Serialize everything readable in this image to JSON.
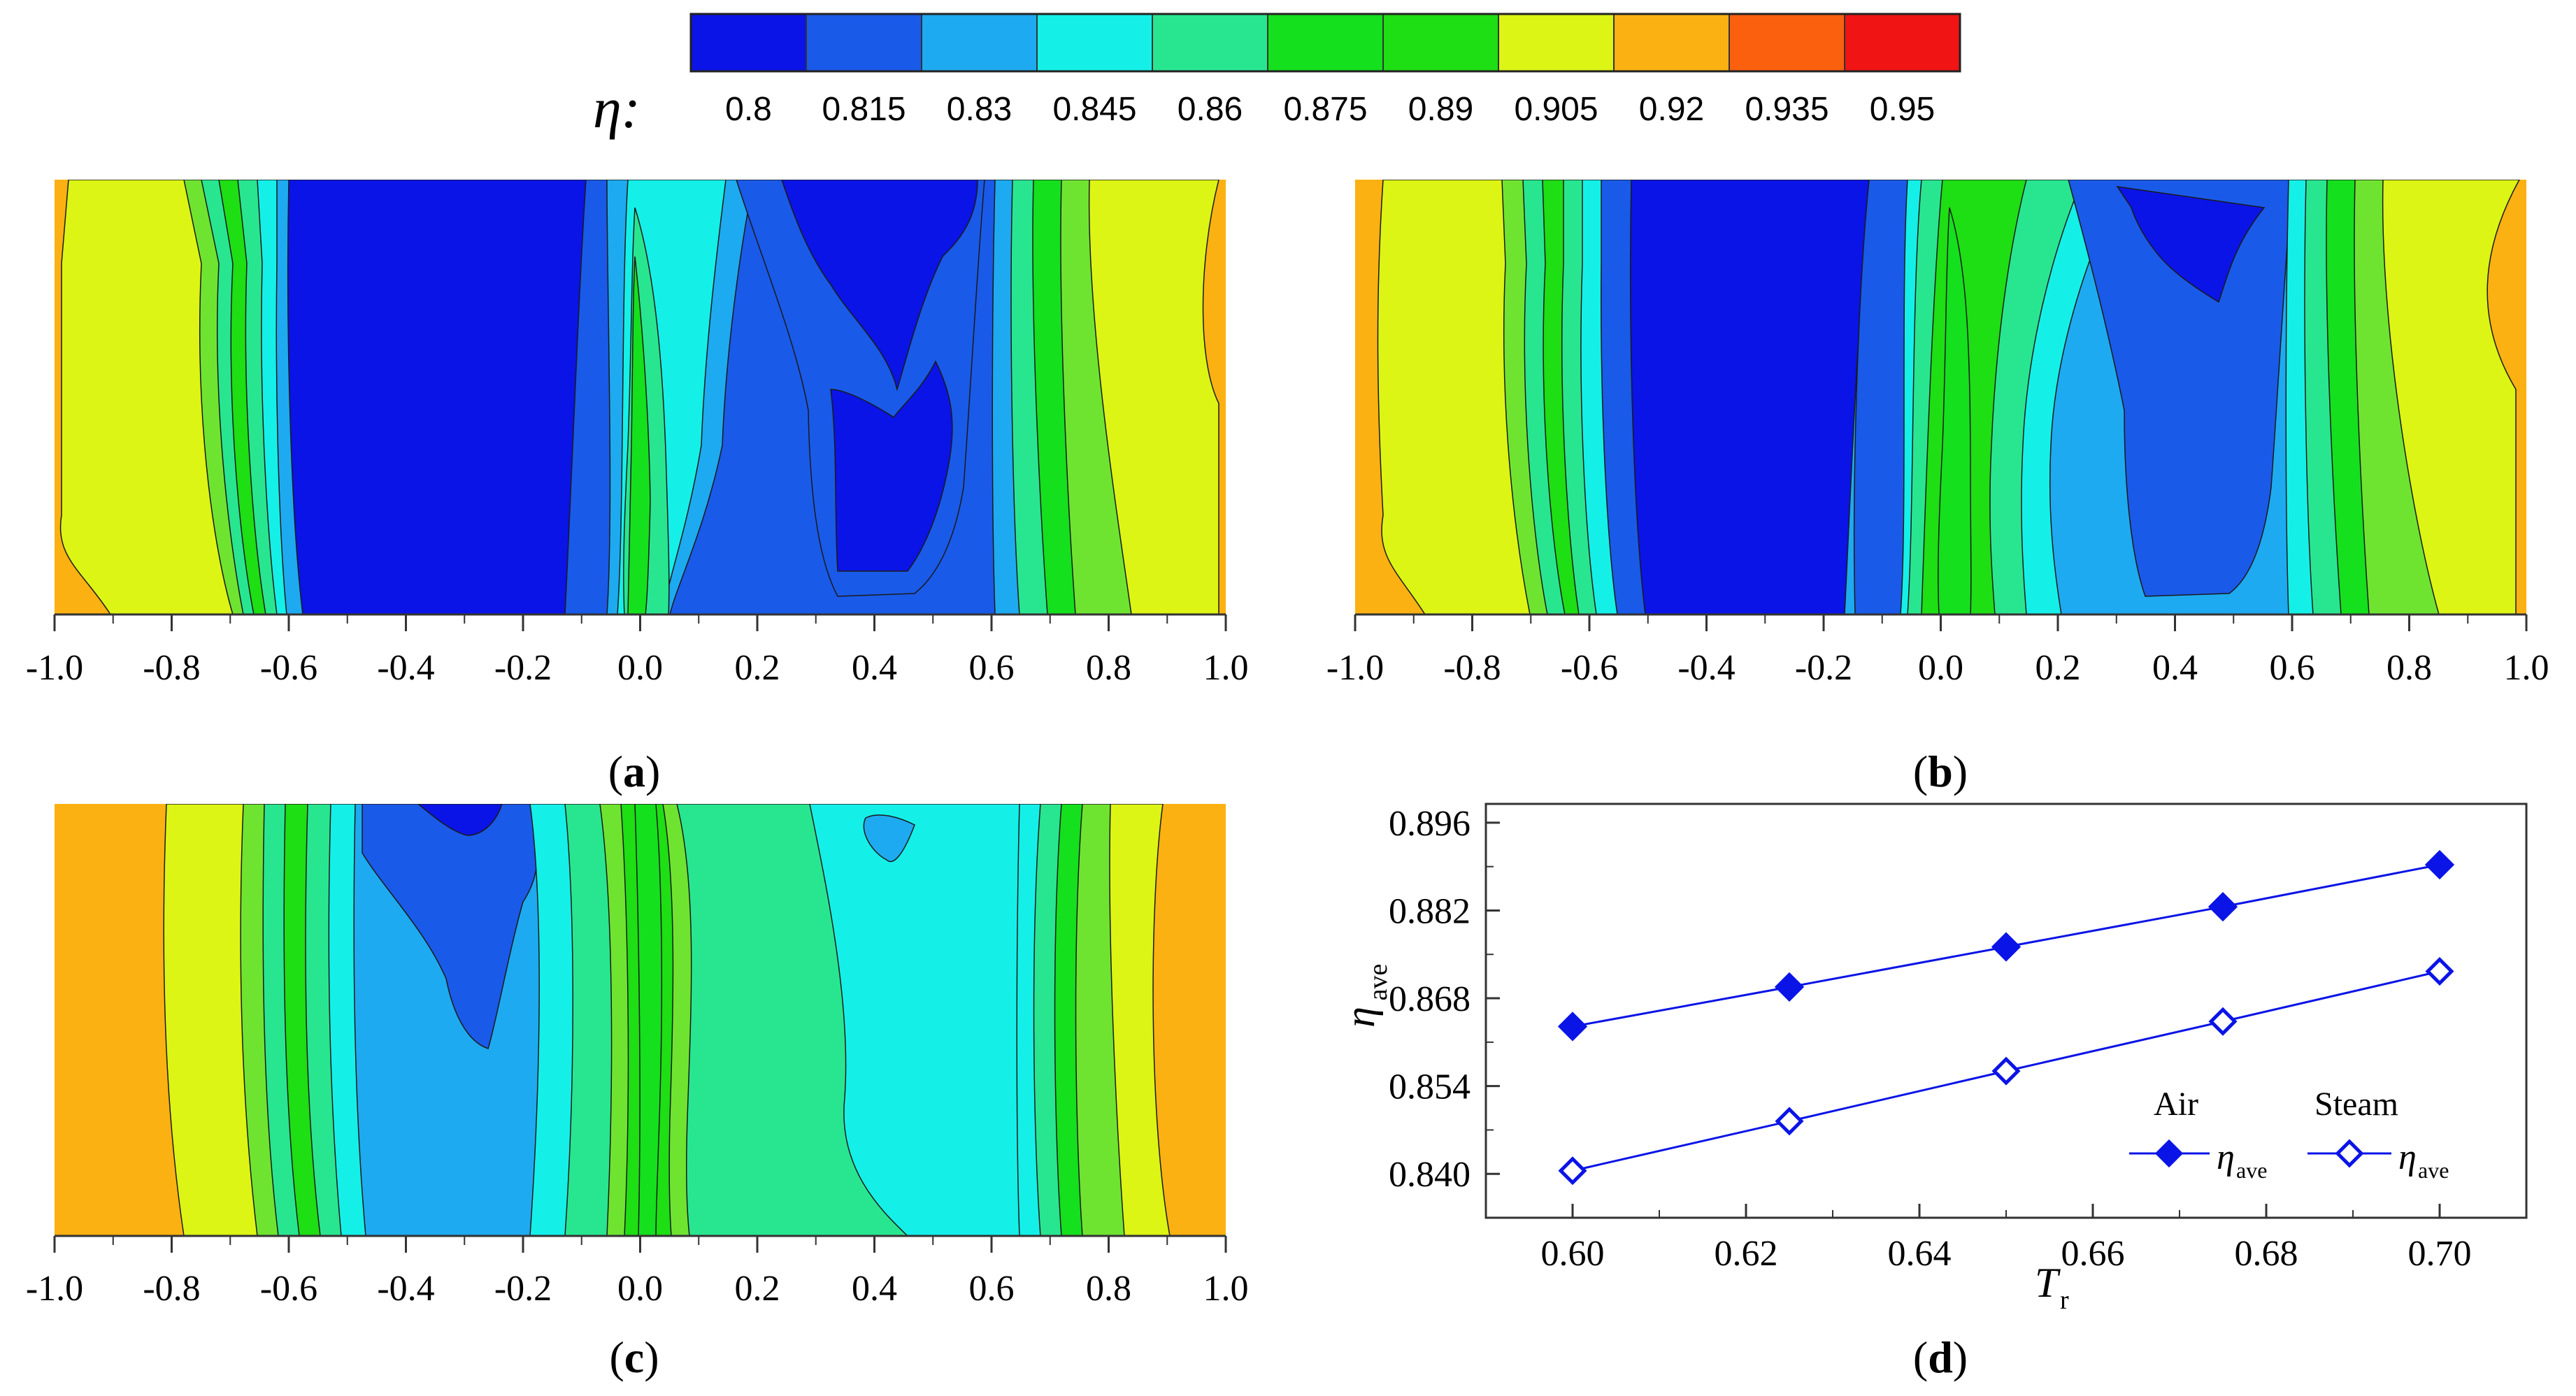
{
  "colorbar": {
    "symbol": "η:",
    "levels": [
      "0.8",
      "0.815",
      "0.83",
      "0.845",
      "0.86",
      "0.875",
      "0.89",
      "0.905",
      "0.92",
      "0.935",
      "0.95"
    ],
    "colors": [
      "#0a14e6",
      "#1a5ae8",
      "#1eaaf0",
      "#14f0e8",
      "#28e690",
      "#14e01e",
      "#1ede14",
      "#dcf514",
      "#fbb111",
      "#fb600f",
      "#f01414"
    ]
  },
  "panels": [
    {
      "id": "a",
      "label_open": "(",
      "label": "a",
      "label_close": ")"
    },
    {
      "id": "b",
      "label_open": "(",
      "label": "b",
      "label_close": ")"
    },
    {
      "id": "c",
      "label_open": "(",
      "label": "c",
      "label_close": ")"
    },
    {
      "id": "d",
      "label_open": "(",
      "label": "d",
      "label_close": ")"
    }
  ],
  "contour_axis": {
    "ticks": [
      "-1.0",
      "-0.8",
      "-0.6",
      "-0.4",
      "-0.2",
      "0.0",
      "0.2",
      "0.4",
      "0.6",
      "0.8",
      "1.0"
    ],
    "range": [
      -1.0,
      1.0
    ]
  },
  "chart_data": [
    {
      "type": "contour",
      "panel": "a",
      "xlim": [
        -1.0,
        1.0
      ],
      "levels": [
        0.8,
        0.815,
        0.83,
        0.845,
        0.86,
        0.875,
        0.89,
        0.905,
        0.92,
        0.935,
        0.95
      ],
      "bands_at_mid_height": [
        {
          "x": [
            -1.0,
            -0.97
          ],
          "eta": 0.935
        },
        {
          "x": [
            -0.97,
            -0.75
          ],
          "eta": 0.905
        },
        {
          "x": [
            -0.75,
            -0.71
          ],
          "eta": 0.89
        },
        {
          "x": [
            -0.71,
            -0.65
          ],
          "eta": 0.875
        },
        {
          "x": [
            -0.65,
            -0.6
          ],
          "eta": 0.86
        },
        {
          "x": [
            -0.6,
            -0.57
          ],
          "eta": 0.845
        },
        {
          "x": [
            -0.57,
            -0.54
          ],
          "eta": 0.83
        },
        {
          "x": [
            -0.54,
            -0.15
          ],
          "eta": 0.8
        },
        {
          "x": [
            -0.15,
            -0.08
          ],
          "eta": 0.815
        },
        {
          "x": [
            -0.08,
            -0.03
          ],
          "eta": 0.845
        },
        {
          "x": [
            -0.03,
            0.04
          ],
          "eta": 0.86
        },
        {
          "x": [
            0.04,
            0.1
          ],
          "eta": 0.845
        },
        {
          "x": [
            0.1,
            0.2
          ],
          "eta": 0.83
        },
        {
          "x": [
            0.2,
            0.28
          ],
          "eta": 0.815
        },
        {
          "x": [
            0.28,
            0.56
          ],
          "eta": 0.8
        },
        {
          "x": [
            0.56,
            0.62
          ],
          "eta": 0.83
        },
        {
          "x": [
            0.62,
            0.7
          ],
          "eta": 0.86
        },
        {
          "x": [
            0.7,
            0.77
          ],
          "eta": 0.875
        },
        {
          "x": [
            0.77,
            0.95
          ],
          "eta": 0.905
        },
        {
          "x": [
            0.95,
            1.0
          ],
          "eta": 0.935
        }
      ]
    },
    {
      "type": "contour",
      "panel": "b",
      "xlim": [
        -1.0,
        1.0
      ],
      "levels": [
        0.8,
        0.815,
        0.83,
        0.845,
        0.86,
        0.875,
        0.89,
        0.905,
        0.92,
        0.935,
        0.95
      ],
      "bands_at_mid_height": [
        {
          "x": [
            -1.0,
            -0.96
          ],
          "eta": 0.935
        },
        {
          "x": [
            -0.96,
            -0.73
          ],
          "eta": 0.905
        },
        {
          "x": [
            -0.73,
            -0.68
          ],
          "eta": 0.89
        },
        {
          "x": [
            -0.68,
            -0.62
          ],
          "eta": 0.875
        },
        {
          "x": [
            -0.62,
            -0.57
          ],
          "eta": 0.86
        },
        {
          "x": [
            -0.57,
            -0.52
          ],
          "eta": 0.845
        },
        {
          "x": [
            -0.52,
            -0.46
          ],
          "eta": 0.815
        },
        {
          "x": [
            -0.46,
            -0.22
          ],
          "eta": 0.8
        },
        {
          "x": [
            -0.22,
            -0.15
          ],
          "eta": 0.815
        },
        {
          "x": [
            -0.15,
            -0.08
          ],
          "eta": 0.845
        },
        {
          "x": [
            -0.08,
            0.04
          ],
          "eta": 0.875
        },
        {
          "x": [
            0.04,
            0.12
          ],
          "eta": 0.86
        },
        {
          "x": [
            0.12,
            0.22
          ],
          "eta": 0.845
        },
        {
          "x": [
            0.22,
            0.58
          ],
          "eta": 0.83
        },
        {
          "x": [
            0.58,
            0.63
          ],
          "eta": 0.845
        },
        {
          "x": [
            0.63,
            0.68
          ],
          "eta": 0.86
        },
        {
          "x": [
            0.68,
            0.75
          ],
          "eta": 0.875
        },
        {
          "x": [
            0.75,
            0.96
          ],
          "eta": 0.905
        },
        {
          "x": [
            0.96,
            1.0
          ],
          "eta": 0.935
        }
      ]
    },
    {
      "type": "contour",
      "panel": "c",
      "xlim": [
        -1.0,
        1.0
      ],
      "levels": [
        0.8,
        0.815,
        0.83,
        0.845,
        0.86,
        0.875,
        0.89,
        0.905,
        0.92,
        0.935,
        0.95
      ],
      "bands_at_mid_height": [
        {
          "x": [
            -1.0,
            -0.79
          ],
          "eta": 0.935
        },
        {
          "x": [
            -0.79,
            -0.7
          ],
          "eta": 0.905
        },
        {
          "x": [
            -0.7,
            -0.66
          ],
          "eta": 0.89
        },
        {
          "x": [
            -0.66,
            -0.62
          ],
          "eta": 0.875
        },
        {
          "x": [
            -0.62,
            -0.58
          ],
          "eta": 0.86
        },
        {
          "x": [
            -0.58,
            -0.53
          ],
          "eta": 0.845
        },
        {
          "x": [
            -0.53,
            -0.34
          ],
          "eta": 0.815
        },
        {
          "x": [
            -0.34,
            -0.24
          ],
          "eta": 0.8
        },
        {
          "x": [
            -0.24,
            -0.18
          ],
          "eta": 0.83
        },
        {
          "x": [
            -0.18,
            -0.08
          ],
          "eta": 0.845
        },
        {
          "x": [
            -0.08,
            0.08
          ],
          "eta": 0.875
        },
        {
          "x": [
            0.08,
            0.14
          ],
          "eta": 0.86
        },
        {
          "x": [
            0.14,
            0.36
          ],
          "eta": 0.845
        },
        {
          "x": [
            0.36,
            0.55
          ],
          "eta": 0.83
        },
        {
          "x": [
            0.55,
            0.6
          ],
          "eta": 0.845
        },
        {
          "x": [
            0.6,
            0.65
          ],
          "eta": 0.86
        },
        {
          "x": [
            0.65,
            0.7
          ],
          "eta": 0.875
        },
        {
          "x": [
            0.7,
            0.8
          ],
          "eta": 0.905
        },
        {
          "x": [
            0.8,
            1.0
          ],
          "eta": 0.935
        }
      ]
    },
    {
      "type": "line",
      "panel": "d",
      "x": [
        0.6,
        0.625,
        0.65,
        0.675,
        0.7
      ],
      "series": [
        {
          "name": "Air",
          "marker": "filled-diamond",
          "values": [
            0.8635,
            0.8698,
            0.8762,
            0.8826,
            0.8893
          ]
        },
        {
          "name": "Steam",
          "marker": "open-diamond",
          "values": [
            0.8405,
            0.8484,
            0.8564,
            0.8643,
            0.8723
          ]
        }
      ],
      "xlim": [
        0.59,
        0.71
      ],
      "ylim": [
        0.833,
        0.899
      ],
      "xticks": [
        "0.60",
        "0.62",
        "0.64",
        "0.66",
        "0.68",
        "0.70"
      ],
      "xtick_values": [
        0.6,
        0.62,
        0.64,
        0.66,
        0.68,
        0.7
      ],
      "yticks": [
        "0.840",
        "0.854",
        "0.868",
        "0.882",
        "0.896"
      ],
      "ytick_values": [
        0.84,
        0.854,
        0.868,
        0.882,
        0.896
      ],
      "xlabel": "T",
      "xlabel_sub": "r",
      "ylabel": "η",
      "ylabel_sub": "ave",
      "legend": {
        "position": "lower-right",
        "entries": [
          {
            "header": "Air",
            "symbol": "η",
            "sub": "ave"
          },
          {
            "header": "Steam",
            "symbol": "η",
            "sub": "ave"
          }
        ]
      },
      "line_color": "#0a14e6"
    }
  ]
}
